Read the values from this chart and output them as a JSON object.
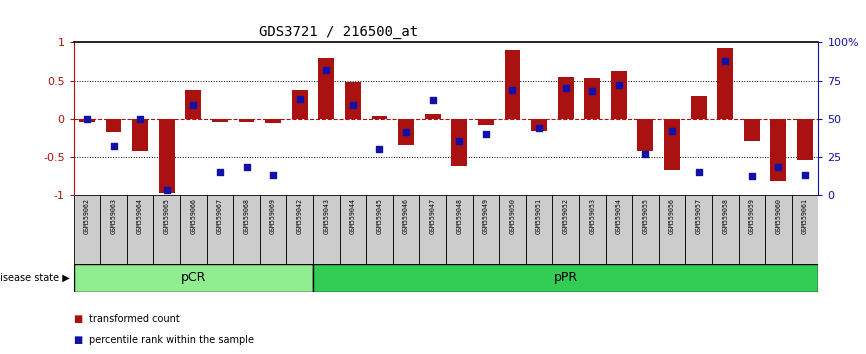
{
  "title": "GDS3721 / 216500_at",
  "samples": [
    "GSM559062",
    "GSM559063",
    "GSM559064",
    "GSM559065",
    "GSM559066",
    "GSM559067",
    "GSM559068",
    "GSM559069",
    "GSM559042",
    "GSM559043",
    "GSM559044",
    "GSM559045",
    "GSM559046",
    "GSM559047",
    "GSM559048",
    "GSM559049",
    "GSM559050",
    "GSM559051",
    "GSM559052",
    "GSM559053",
    "GSM559054",
    "GSM559055",
    "GSM559056",
    "GSM559057",
    "GSM559058",
    "GSM559059",
    "GSM559060",
    "GSM559061"
  ],
  "transformed_count": [
    -0.05,
    -0.18,
    -0.42,
    -0.98,
    0.38,
    -0.05,
    -0.04,
    -0.06,
    0.37,
    0.8,
    0.48,
    0.04,
    -0.35,
    0.06,
    -0.62,
    -0.08,
    0.9,
    -0.16,
    0.54,
    0.53,
    0.62,
    -0.43,
    -0.68,
    0.3,
    0.93,
    -0.3,
    -0.82,
    -0.55
  ],
  "percentile_rank": [
    0.5,
    0.32,
    0.5,
    0.03,
    0.59,
    0.15,
    0.18,
    0.13,
    0.63,
    0.82,
    0.59,
    0.3,
    0.41,
    0.62,
    0.35,
    0.4,
    0.69,
    0.44,
    0.7,
    0.68,
    0.72,
    0.27,
    0.42,
    0.15,
    0.88,
    0.12,
    0.18,
    0.13
  ],
  "pcr_count": 9,
  "ppr_count": 19,
  "bar_color": "#AA1111",
  "dot_color": "#1111AA",
  "pcr_color": "#90EE90",
  "ppr_color": "#33CC55",
  "bg_color": "#FFFFFF",
  "yticks_left": [
    -1,
    -0.5,
    0,
    0.5,
    1
  ],
  "ytick_labels_left": [
    "-1",
    "-0.5",
    "0",
    "0.5",
    "1"
  ],
  "yticks_right": [
    0,
    25,
    50,
    75,
    100
  ],
  "ytick_labels_right": [
    "0",
    "25",
    "50",
    "75",
    "100%"
  ],
  "ylim": [
    -1,
    1
  ],
  "label_box_color": "#CCCCCC",
  "legend_square_size": 7,
  "title_fontsize": 10,
  "bar_width": 0.6
}
